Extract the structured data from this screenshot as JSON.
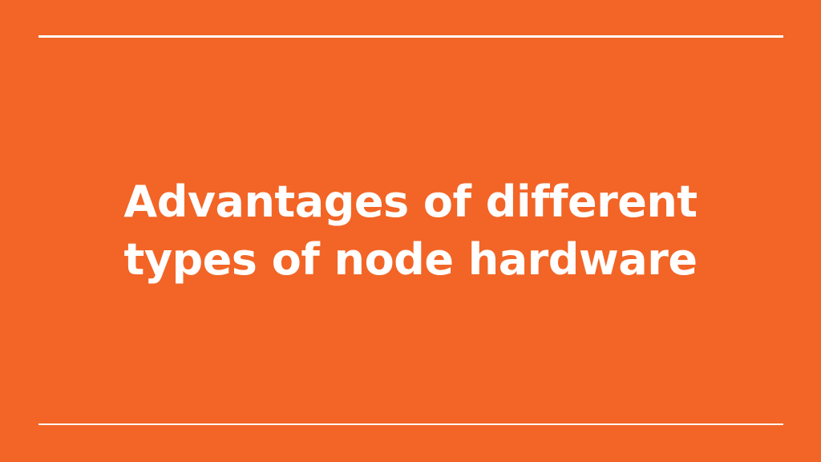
{
  "slide": {
    "title_lines": [
      "Advantages of different",
      "types of node hardware"
    ],
    "colors": {
      "background": "#F26526",
      "foreground": "#FFFFFF"
    }
  }
}
